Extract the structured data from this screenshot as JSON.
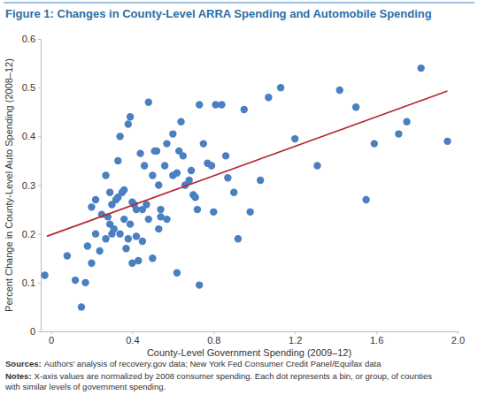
{
  "chart_data": {
    "type": "scatter",
    "title": "Figure 1: Changes in County-Level ARRA Spending and Automobile Spending",
    "x_label": "County-Level Government Spending (2009–12)",
    "y_label": "Percent Change in County-Level Auto Spending (2008–12)",
    "xlim": [
      -0.05,
      2.0
    ],
    "xticks": [
      0,
      0.4,
      0.8,
      1.2,
      1.6,
      {
        "value": 2.0,
        "label": "2.0"
      }
    ],
    "ylim": [
      0,
      0.6
    ],
    "yticks": [
      0,
      0.1,
      0.2,
      0.3,
      0.4,
      0.5,
      0.6
    ],
    "grid": false,
    "series": [
      {
        "type": "scatter",
        "color": "#4a7fc1",
        "marker": "circle",
        "x": [
          -0.03,
          0.08,
          0.12,
          0.15,
          0.17,
          0.18,
          0.2,
          0.2,
          0.22,
          0.22,
          0.24,
          0.25,
          0.27,
          0.27,
          0.28,
          0.29,
          0.29,
          0.3,
          0.3,
          0.31,
          0.32,
          0.33,
          0.33,
          0.34,
          0.34,
          0.35,
          0.36,
          0.36,
          0.37,
          0.38,
          0.38,
          0.39,
          0.39,
          0.4,
          0.4,
          0.41,
          0.42,
          0.42,
          0.43,
          0.44,
          0.45,
          0.45,
          0.46,
          0.47,
          0.48,
          0.48,
          0.5,
          0.5,
          0.51,
          0.52,
          0.53,
          0.53,
          0.54,
          0.54,
          0.56,
          0.57,
          0.57,
          0.6,
          0.6,
          0.62,
          0.62,
          0.63,
          0.64,
          0.65,
          0.66,
          0.68,
          0.69,
          0.7,
          0.71,
          0.72,
          0.73,
          0.73,
          0.75,
          0.77,
          0.79,
          0.8,
          0.81,
          0.84,
          0.86,
          0.87,
          0.9,
          0.92,
          0.95,
          0.98,
          1.03,
          1.07,
          1.13,
          1.2,
          1.31,
          1.42,
          1.5,
          1.55,
          1.59,
          1.71,
          1.75,
          1.82,
          1.95
        ],
        "values": [
          0.115,
          0.155,
          0.105,
          0.05,
          0.1,
          0.175,
          0.14,
          0.255,
          0.27,
          0.2,
          0.165,
          0.24,
          0.32,
          0.19,
          0.235,
          0.22,
          0.285,
          0.26,
          0.2,
          0.21,
          0.27,
          0.275,
          0.35,
          0.4,
          0.2,
          0.285,
          0.29,
          0.23,
          0.17,
          0.19,
          0.425,
          0.44,
          0.22,
          0.265,
          0.14,
          0.26,
          0.25,
          0.195,
          0.145,
          0.365,
          0.185,
          0.25,
          0.34,
          0.26,
          0.47,
          0.23,
          0.32,
          0.15,
          0.37,
          0.37,
          0.21,
          0.3,
          0.25,
          0.235,
          0.34,
          0.385,
          0.23,
          0.32,
          0.405,
          0.12,
          0.325,
          0.37,
          0.43,
          0.36,
          0.3,
          0.31,
          0.33,
          0.28,
          0.275,
          0.25,
          0.095,
          0.465,
          0.385,
          0.345,
          0.34,
          0.245,
          0.465,
          0.465,
          0.36,
          0.315,
          0.285,
          0.19,
          0.455,
          0.245,
          0.31,
          0.48,
          0.5,
          0.395,
          0.34,
          0.495,
          0.46,
          0.27,
          0.385,
          0.405,
          0.43,
          0.54,
          0.39
        ]
      },
      {
        "type": "line",
        "color": "#b5282e",
        "line_style": "solid",
        "x": [
          -0.02,
          1.95
        ],
        "values": [
          0.195,
          0.493
        ]
      }
    ],
    "sources": {
      "label": "Sources:",
      "text": "Authors' analysis of recovery.gov data; New York Fed Consumer Credit Panel/Equifax data"
    },
    "notes": {
      "label": "Notes:",
      "lines": [
        "X-axis values are normalized by 2008 consumer spending. Each dot represents a bin, or group, of counties",
        "with similar levels of government spending."
      ]
    }
  }
}
